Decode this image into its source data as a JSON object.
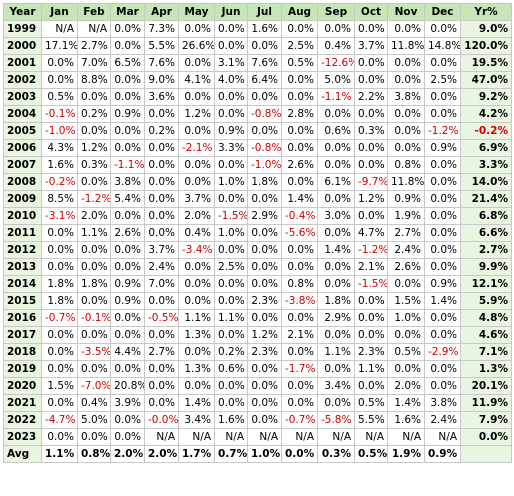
{
  "table": {
    "header": [
      "Year",
      "Jan",
      "Feb",
      "Mar",
      "Apr",
      "May",
      "Jun",
      "Jul",
      "Aug",
      "Sep",
      "Oct",
      "Nov",
      "Dec",
      "Yr%"
    ],
    "rows": [
      [
        "1999",
        "N/A",
        "N/A",
        "0.0%",
        "7.3%",
        "0.0%",
        "0.0%",
        "1.6%",
        "0.0%",
        "0.0%",
        "0.0%",
        "0.0%",
        "0.0%",
        "9.0%"
      ],
      [
        "2000",
        "17.1%",
        "2.7%",
        "0.0%",
        "5.5%",
        "26.6%",
        "0.0%",
        "0.0%",
        "2.5%",
        "0.4%",
        "3.7%",
        "11.8%",
        "14.8%",
        "120.0%"
      ],
      [
        "2001",
        "0.0%",
        "7.0%",
        "6.5%",
        "7.6%",
        "0.0%",
        "3.1%",
        "7.6%",
        "0.5%",
        "-12.6%",
        "0.0%",
        "0.0%",
        "0.0%",
        "19.5%"
      ],
      [
        "2002",
        "0.0%",
        "8.8%",
        "0.0%",
        "9.0%",
        "4.1%",
        "4.0%",
        "6.4%",
        "0.0%",
        "5.0%",
        "0.0%",
        "0.0%",
        "2.5%",
        "47.0%"
      ],
      [
        "2003",
        "0.5%",
        "0.0%",
        "0.0%",
        "3.6%",
        "0.0%",
        "0.0%",
        "0.0%",
        "0.0%",
        "-1.1%",
        "2.2%",
        "3.8%",
        "0.0%",
        "9.2%"
      ],
      [
        "2004",
        "-0.1%",
        "0.2%",
        "0.9%",
        "0.0%",
        "1.2%",
        "0.0%",
        "-0.8%",
        "2.8%",
        "0.0%",
        "0.0%",
        "0.0%",
        "0.0%",
        "4.2%"
      ],
      [
        "2005",
        "-1.0%",
        "0.0%",
        "0.0%",
        "0.2%",
        "0.0%",
        "0.9%",
        "0.0%",
        "0.0%",
        "0.6%",
        "0.3%",
        "0.0%",
        "-1.2%",
        "-0.2%"
      ],
      [
        "2006",
        "4.3%",
        "1.2%",
        "0.0%",
        "0.0%",
        "-2.1%",
        "3.3%",
        "-0.8%",
        "0.0%",
        "0.0%",
        "0.0%",
        "0.0%",
        "0.9%",
        "6.9%"
      ],
      [
        "2007",
        "1.6%",
        "0.3%",
        "-1.1%",
        "0.0%",
        "0.0%",
        "0.0%",
        "-1.0%",
        "2.6%",
        "0.0%",
        "0.0%",
        "0.8%",
        "0.0%",
        "3.3%"
      ],
      [
        "2008",
        "-0.2%",
        "0.0%",
        "3.8%",
        "0.0%",
        "0.0%",
        "1.0%",
        "1.8%",
        "0.0%",
        "6.1%",
        "-9.7%",
        "11.8%",
        "0.0%",
        "14.0%"
      ],
      [
        "2009",
        "8.5%",
        "-1.2%",
        "5.4%",
        "0.0%",
        "3.7%",
        "0.0%",
        "0.0%",
        "1.4%",
        "0.0%",
        "1.2%",
        "0.9%",
        "0.0%",
        "21.4%"
      ],
      [
        "2010",
        "-3.1%",
        "2.0%",
        "0.0%",
        "0.0%",
        "2.0%",
        "-1.5%",
        "2.9%",
        "-0.4%",
        "3.0%",
        "0.0%",
        "1.9%",
        "0.0%",
        "6.8%"
      ],
      [
        "2011",
        "0.0%",
        "1.1%",
        "2.6%",
        "0.0%",
        "0.4%",
        "1.0%",
        "0.0%",
        "-5.6%",
        "0.0%",
        "4.7%",
        "2.7%",
        "0.0%",
        "6.6%"
      ],
      [
        "2012",
        "0.0%",
        "0.0%",
        "0.0%",
        "3.7%",
        "-3.4%",
        "0.0%",
        "0.0%",
        "0.0%",
        "1.4%",
        "-1.2%",
        "2.4%",
        "0.0%",
        "2.7%"
      ],
      [
        "2013",
        "0.0%",
        "0.0%",
        "0.0%",
        "2.4%",
        "0.0%",
        "2.5%",
        "0.0%",
        "0.0%",
        "0.0%",
        "2.1%",
        "2.6%",
        "0.0%",
        "9.9%"
      ],
      [
        "2014",
        "1.8%",
        "1.8%",
        "0.9%",
        "7.0%",
        "0.0%",
        "0.0%",
        "0.0%",
        "0.8%",
        "0.0%",
        "-1.5%",
        "0.0%",
        "0.9%",
        "12.1%"
      ],
      [
        "2015",
        "1.8%",
        "0.0%",
        "0.9%",
        "0.0%",
        "0.0%",
        "0.0%",
        "2.3%",
        "-3.8%",
        "1.8%",
        "0.0%",
        "1.5%",
        "1.4%",
        "5.9%"
      ],
      [
        "2016",
        "-0.7%",
        "-0.1%",
        "0.0%",
        "-0.5%",
        "1.1%",
        "1.1%",
        "0.0%",
        "0.0%",
        "2.9%",
        "0.0%",
        "1.0%",
        "0.0%",
        "4.8%"
      ],
      [
        "2017",
        "0.0%",
        "0.0%",
        "0.0%",
        "0.0%",
        "1.3%",
        "0.0%",
        "1.2%",
        "2.1%",
        "0.0%",
        "0.0%",
        "0.0%",
        "0.0%",
        "4.6%"
      ],
      [
        "2018",
        "0.0%",
        "-3.5%",
        "4.4%",
        "2.7%",
        "0.0%",
        "0.2%",
        "2.3%",
        "0.0%",
        "1.1%",
        "2.3%",
        "0.5%",
        "-2.9%",
        "7.1%"
      ],
      [
        "2019",
        "0.0%",
        "0.0%",
        "0.0%",
        "0.0%",
        "1.3%",
        "0.6%",
        "0.0%",
        "-1.7%",
        "0.0%",
        "1.1%",
        "0.0%",
        "0.0%",
        "1.3%"
      ],
      [
        "2020",
        "1.5%",
        "-7.0%",
        "20.8%",
        "0.0%",
        "0.0%",
        "0.0%",
        "0.0%",
        "0.0%",
        "3.4%",
        "0.0%",
        "2.0%",
        "0.0%",
        "20.1%"
      ],
      [
        "2021",
        "0.0%",
        "0.4%",
        "3.9%",
        "0.0%",
        "1.4%",
        "0.0%",
        "0.0%",
        "0.0%",
        "0.0%",
        "0.5%",
        "1.4%",
        "3.8%",
        "11.9%"
      ],
      [
        "2022",
        "-4.7%",
        "5.0%",
        "0.0%",
        "-0.0%",
        "3.4%",
        "1.6%",
        "0.0%",
        "-0.7%",
        "-5.8%",
        "5.5%",
        "1.6%",
        "2.4%",
        "7.9%"
      ],
      [
        "2023",
        "0.0%",
        "0.0%",
        "0.0%",
        "N/A",
        "N/A",
        "N/A",
        "N/A",
        "N/A",
        "N/A",
        "N/A",
        "N/A",
        "N/A",
        "0.0%"
      ]
    ],
    "footer": [
      "Avg",
      "1.1%",
      "0.8%",
      "2.0%",
      "2.0%",
      "1.7%",
      "0.7%",
      "1.0%",
      "0.0%",
      "0.3%",
      "0.5%",
      "1.9%",
      "0.9%"
    ]
  }
}
